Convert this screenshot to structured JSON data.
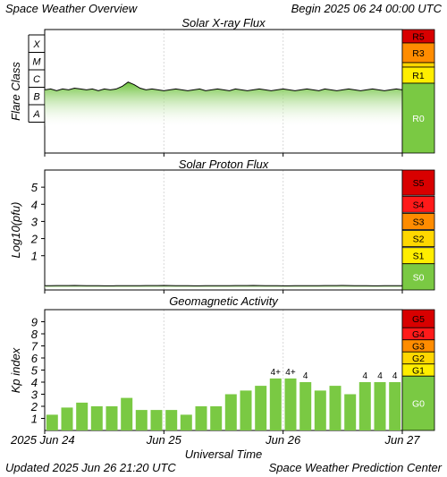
{
  "header": {
    "title": "Space Weather Overview",
    "begin": "Begin 2025 06 24 00:00 UTC"
  },
  "footer": {
    "updated": "Updated 2025 Jun 26 21:20 UTC",
    "center": "Space Weather Prediction Center"
  },
  "chart_data": [
    {
      "type": "area",
      "title": "Solar X-ray Flux",
      "ylabel": "Flare Class",
      "x_ticks": [
        "2025 Jun 24",
        "Jun 25",
        "Jun 26",
        "Jun 27"
      ],
      "x_range_days": [
        0,
        3
      ],
      "y_classes": [
        "A",
        "B",
        "C",
        "M",
        "X"
      ],
      "y_range_log_wm2": [
        -8,
        -3
      ],
      "series": [
        {
          "x_days": [
            0.0,
            0.05,
            0.1,
            0.15,
            0.2,
            0.25,
            0.3,
            0.35,
            0.4,
            0.45,
            0.5,
            0.55,
            0.6,
            0.65,
            0.7,
            0.75,
            0.8,
            0.85,
            0.9,
            0.95,
            1.0,
            1.05,
            1.1,
            1.15,
            1.2,
            1.25,
            1.3,
            1.35,
            1.4,
            1.45,
            1.5,
            1.55,
            1.6,
            1.65,
            1.7,
            1.75,
            1.8,
            1.85,
            1.9,
            1.95,
            2.0,
            2.05,
            2.1,
            2.15,
            2.2,
            2.25,
            2.3,
            2.35,
            2.4,
            2.45,
            2.5,
            2.55,
            2.6,
            2.65,
            2.7,
            2.75,
            2.8,
            2.85,
            2.9,
            2.95,
            3.0
          ],
          "log_flux": [
            -6.15,
            -6.1,
            -6.2,
            -6.1,
            -6.15,
            -6.05,
            -6.1,
            -6.15,
            -6.1,
            -6.2,
            -6.1,
            -6.15,
            -6.1,
            -5.95,
            -5.7,
            -5.85,
            -6.05,
            -6.15,
            -6.1,
            -6.15,
            -6.2,
            -6.15,
            -6.1,
            -6.15,
            -6.2,
            -6.15,
            -6.1,
            -6.2,
            -6.15,
            -6.1,
            -6.15,
            -6.2,
            -6.1,
            -6.15,
            -6.2,
            -6.15,
            -6.1,
            -6.15,
            -6.2,
            -6.15,
            -6.1,
            -6.15,
            -6.2,
            -6.15,
            -6.1,
            -6.15,
            -6.2,
            -6.1,
            -6.15,
            -6.2,
            -6.15,
            -6.1,
            -6.15,
            -6.2,
            -6.15,
            -6.1,
            -6.15,
            -6.2,
            -6.15,
            -6.1,
            -6.15
          ]
        }
      ],
      "scale": [
        {
          "label": "R5",
          "color": "#d80000"
        },
        {
          "label": "R3",
          "color": "#ff8c00"
        },
        {
          "label": "",
          "color": "#ffd700"
        },
        {
          "label": "R1",
          "color": "#ffee00"
        },
        {
          "label": "R0",
          "color": "#7ac943"
        }
      ]
    },
    {
      "type": "area",
      "title": "Solar Proton Flux",
      "ylabel": "Log10(pfu)",
      "x_ticks": [
        "2025 Jun 24",
        "Jun 25",
        "Jun 26",
        "Jun 27"
      ],
      "x_range_days": [
        0,
        3
      ],
      "y_ticks": [
        1,
        2,
        3,
        4,
        5
      ],
      "y_range": [
        -1,
        6
      ],
      "series": [
        {
          "x_days": [
            0.0,
            0.25,
            0.5,
            0.75,
            1.0,
            1.25,
            1.5,
            1.75,
            2.0,
            2.25,
            2.5,
            2.75,
            3.0
          ],
          "values": [
            -0.75,
            -0.74,
            -0.76,
            -0.75,
            -0.74,
            -0.76,
            -0.75,
            -0.74,
            -0.76,
            -0.75,
            -0.74,
            -0.76,
            -0.75
          ]
        }
      ],
      "scale": [
        {
          "label": "S5",
          "color": "#d80000"
        },
        {
          "label": "S4",
          "color": "#ff1a1a"
        },
        {
          "label": "S3",
          "color": "#ff8c00"
        },
        {
          "label": "S2",
          "color": "#ffd700"
        },
        {
          "label": "S1",
          "color": "#ffee00"
        },
        {
          "label": "S0",
          "color": "#7ac943"
        }
      ]
    },
    {
      "type": "bar",
      "title": "Geomagnetic Activity",
      "ylabel": "Kp index",
      "xlabel": "Universal Time",
      "x_ticks": [
        "2025 Jun 24",
        "Jun 25",
        "Jun 26",
        "Jun 27"
      ],
      "x_range_days": [
        0,
        3
      ],
      "y_ticks": [
        1,
        2,
        3,
        4,
        5,
        6,
        7,
        8,
        9
      ],
      "y_range": [
        0,
        10
      ],
      "bar_color": "#7ac943",
      "values": [
        1.3,
        1.9,
        2.3,
        2.0,
        2.0,
        2.7,
        1.7,
        1.7,
        1.7,
        1.3,
        2.0,
        2.0,
        3.0,
        3.3,
        3.7,
        4.3,
        4.3,
        4.0,
        3.3,
        3.7,
        3.0,
        4.0,
        4.0,
        4.0
      ],
      "bar_labels": [
        "",
        "",
        "",
        "",
        "",
        "",
        "",
        "",
        "",
        "",
        "",
        "",
        "",
        "",
        "",
        "4+",
        "4+",
        "4",
        "",
        "",
        "",
        "4",
        "4",
        "4"
      ],
      "scale": [
        {
          "label": "G5",
          "color": "#d80000"
        },
        {
          "label": "G4",
          "color": "#ff1a1a"
        },
        {
          "label": "G3",
          "color": "#ff8c00"
        },
        {
          "label": "G2",
          "color": "#ffd700"
        },
        {
          "label": "G1",
          "color": "#ffee00"
        },
        {
          "label": "G0",
          "color": "#7ac943"
        }
      ]
    }
  ]
}
